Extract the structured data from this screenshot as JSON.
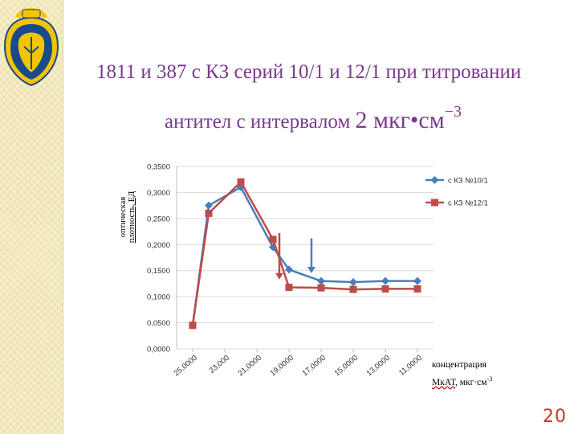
{
  "slide": {
    "title_line1": "1811 и 387 с КЗ серий 10/1 и 12/1 при титровании",
    "title_line2_text": "антител с интервалом ",
    "title_line2_unit": "2 мкг•см",
    "title_line2_exp": "−3",
    "page_number": "20"
  },
  "axis_labels": {
    "y_line1": "оптическая",
    "y_line2": "плотность, ЕД",
    "x_line1": "концентрация",
    "x_line2_main": "МкАТ",
    "x_line2_rest": ", мкг·см",
    "x_line2_exp": "-3"
  },
  "colors": {
    "series1": "#4a7ebb",
    "series2": "#be4b48",
    "title": "#7a3a8c",
    "page_number": "#c0392b"
  },
  "chart_data": {
    "type": "line",
    "x_ticks": [
      "25,0000",
      "23,000",
      "21,0000",
      "19,0000",
      "17,0000",
      "15,0000",
      "13,0000",
      "11,0000"
    ],
    "y_ticks": [
      "0,0000",
      "0,0500",
      "0,1000",
      "0,1500",
      "0,2000",
      "0,2500",
      "0,3000",
      "0,3500"
    ],
    "ylim": [
      0,
      0.35
    ],
    "xlim": [
      26,
      10
    ],
    "grid": true,
    "legend_position": "right",
    "series": [
      {
        "name": "с КЗ №10/1",
        "marker": "diamond",
        "x": [
          25,
          24,
          22,
          20,
          19,
          17,
          15,
          13,
          11
        ],
        "y": [
          0.045,
          0.275,
          0.31,
          0.195,
          0.152,
          0.13,
          0.128,
          0.13,
          0.13
        ]
      },
      {
        "name": "с КЗ №12/1",
        "marker": "square",
        "x": [
          25,
          24,
          22,
          20,
          19,
          17,
          15,
          13,
          11
        ],
        "y": [
          0.045,
          0.26,
          0.32,
          0.21,
          0.118,
          0.117,
          0.114,
          0.115,
          0.115
        ]
      }
    ],
    "annotations": [
      {
        "type": "arrow-down",
        "color": "#4a7ebb",
        "x": 17.6,
        "y_from": 0.212,
        "y_to": 0.145
      },
      {
        "type": "arrow-down",
        "color": "#be4b48",
        "x": 19.6,
        "y_from": 0.222,
        "y_to": 0.133
      }
    ]
  }
}
